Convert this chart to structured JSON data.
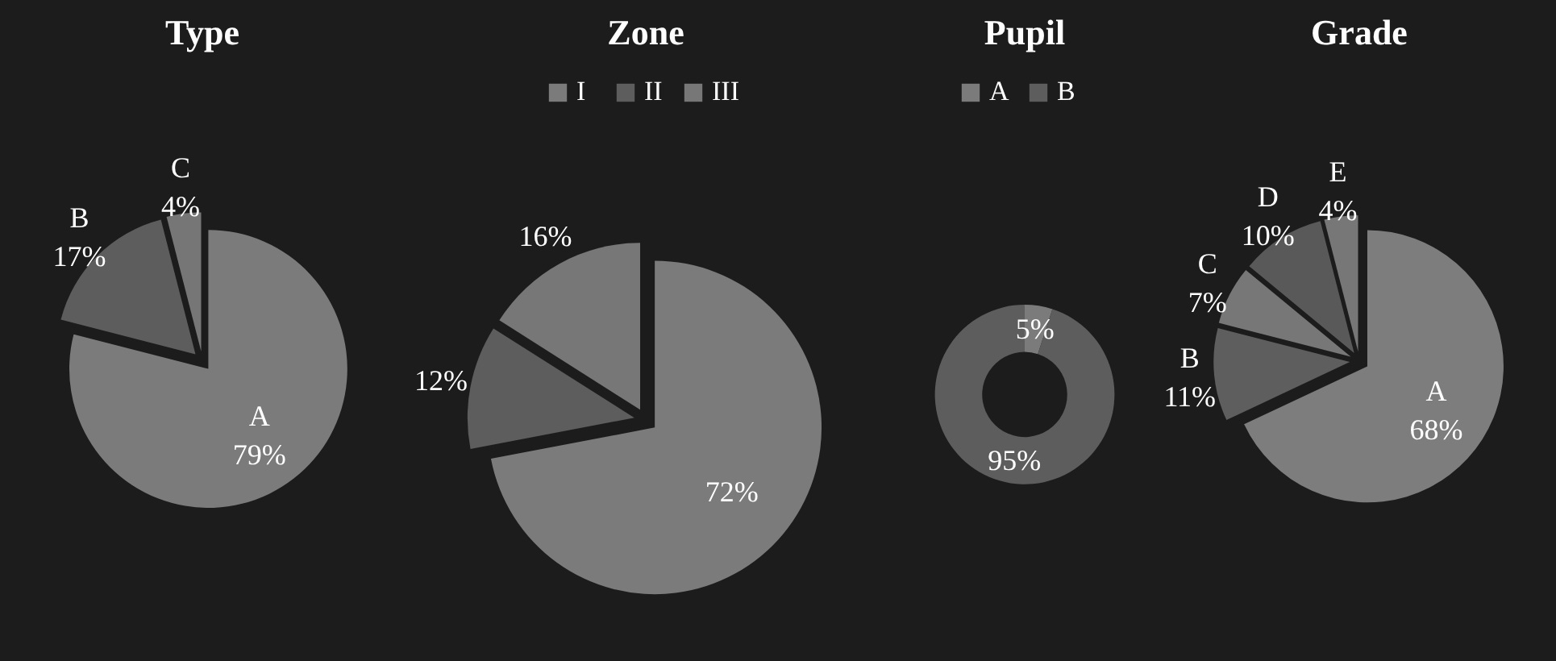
{
  "chart_data": [
    {
      "type": "pie",
      "title": "Type",
      "categories": [
        "A",
        "B",
        "C"
      ],
      "values": [
        79,
        17,
        4
      ],
      "colors": [
        "#7b7b7b",
        "#5d5d5d",
        "#767676"
      ],
      "value_labels": [
        "79%",
        "17%",
        "4%"
      ],
      "legend": false
    },
    {
      "type": "pie",
      "title": "Zone",
      "categories": [
        "I",
        "II",
        "III"
      ],
      "values": [
        72,
        12,
        16
      ],
      "colors": [
        "#7b7b7b",
        "#5d5d5d",
        "#777777"
      ],
      "value_labels": [
        "72%",
        "12%",
        "16%"
      ],
      "legend": "top"
    },
    {
      "type": "donut",
      "title": "Pupil",
      "categories": [
        "A",
        "B"
      ],
      "values": [
        5,
        95
      ],
      "colors": [
        "#7b7b7b",
        "#5d5d5d"
      ],
      "value_labels": [
        "5%",
        "95%"
      ],
      "legend": "top"
    },
    {
      "type": "pie",
      "title": "Grade",
      "categories": [
        "A",
        "B",
        "C",
        "D",
        "E"
      ],
      "values": [
        68,
        11,
        7,
        10,
        4
      ],
      "colors": [
        "#7d7d7d",
        "#5e5e5e",
        "#777777",
        "#595959",
        "#777777"
      ],
      "value_labels": [
        "68%",
        "11%",
        "7%",
        "10%",
        "4%"
      ],
      "legend": false
    }
  ]
}
